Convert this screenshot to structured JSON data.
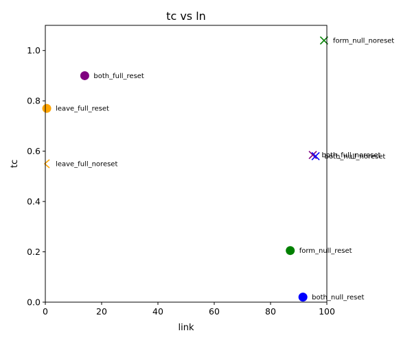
{
  "chart_data": {
    "type": "scatter",
    "title": "tc vs ln",
    "xlabel": "link",
    "ylabel": "tc",
    "xlim": [
      0,
      100
    ],
    "ylim": [
      0,
      1.1
    ],
    "xticks": [
      0,
      20,
      40,
      60,
      80,
      100
    ],
    "yticks": [
      0.0,
      0.2,
      0.4,
      0.6,
      0.8,
      1.0
    ],
    "xtick_labels": [
      "0",
      "20",
      "40",
      "60",
      "80",
      "100"
    ],
    "ytick_labels": [
      "0.0",
      "0.2",
      "0.4",
      "0.6",
      "0.8",
      "1.0"
    ],
    "grid": false,
    "points": [
      {
        "label": "form_null_noreset",
        "x": 99,
        "y": 1.04,
        "marker": "x",
        "color": "#008000"
      },
      {
        "label": "both_full_reset",
        "x": 14,
        "y": 0.9,
        "marker": "circle",
        "color": "#800080"
      },
      {
        "label": "leave_full_reset",
        "x": 0.5,
        "y": 0.77,
        "marker": "circle",
        "color": "#FFA500"
      },
      {
        "label": "both_full_noreset",
        "x": 95,
        "y": 0.585,
        "marker": "x",
        "color": "#800080"
      },
      {
        "label": "both_null_noreset",
        "x": 96,
        "y": 0.58,
        "marker": "x",
        "color": "#0000FF"
      },
      {
        "label": "leave_full_noreset",
        "x": 0.5,
        "y": 0.55,
        "marker": "caret-left",
        "color": "#FFA500"
      },
      {
        "label": "form_null_reset",
        "x": 87,
        "y": 0.205,
        "marker": "circle",
        "color": "#008000"
      },
      {
        "label": "both_null_reset",
        "x": 91.5,
        "y": 0.02,
        "marker": "circle",
        "color": "#0000FF"
      }
    ]
  }
}
